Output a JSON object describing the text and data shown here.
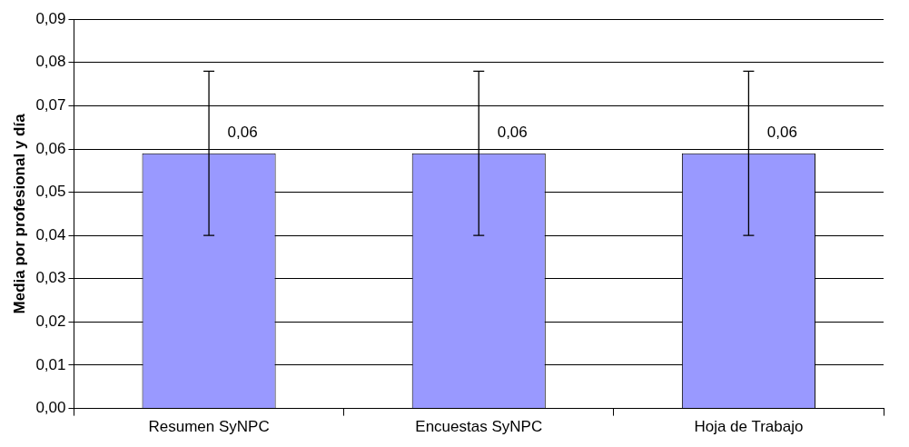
{
  "chart_data": {
    "type": "bar",
    "ylabel": "Media por profesional y día",
    "categories": [
      "Resumen SyNPC",
      "Encuestas SyNPC",
      "Hoja de Trabajo"
    ],
    "values": [
      0.059,
      0.059,
      0.059
    ],
    "color": "#9999ff",
    "errors": [
      [
        0.04,
        0.078
      ],
      [
        0.04,
        0.078
      ],
      [
        0.04,
        0.078
      ]
    ],
    "value_labels": [
      "0,06",
      "0,06",
      "0,06"
    ],
    "ylim": [
      0,
      0.09
    ],
    "yticks": [
      {
        "value": 0,
        "label": "0,00"
      },
      {
        "value": 0.01,
        "label": "0,01"
      },
      {
        "value": 0.02,
        "label": "0,02"
      },
      {
        "value": 0.03,
        "label": "0,03"
      },
      {
        "value": 0.04,
        "label": "0,04"
      },
      {
        "value": 0.05,
        "label": "0,05"
      },
      {
        "value": 0.06,
        "label": "0,06"
      },
      {
        "value": 0.07,
        "label": "0,07"
      },
      {
        "value": 0.08,
        "label": "0,08"
      },
      {
        "value": 0.09,
        "label": "0,09"
      }
    ],
    "grid": "y",
    "legend": false
  }
}
